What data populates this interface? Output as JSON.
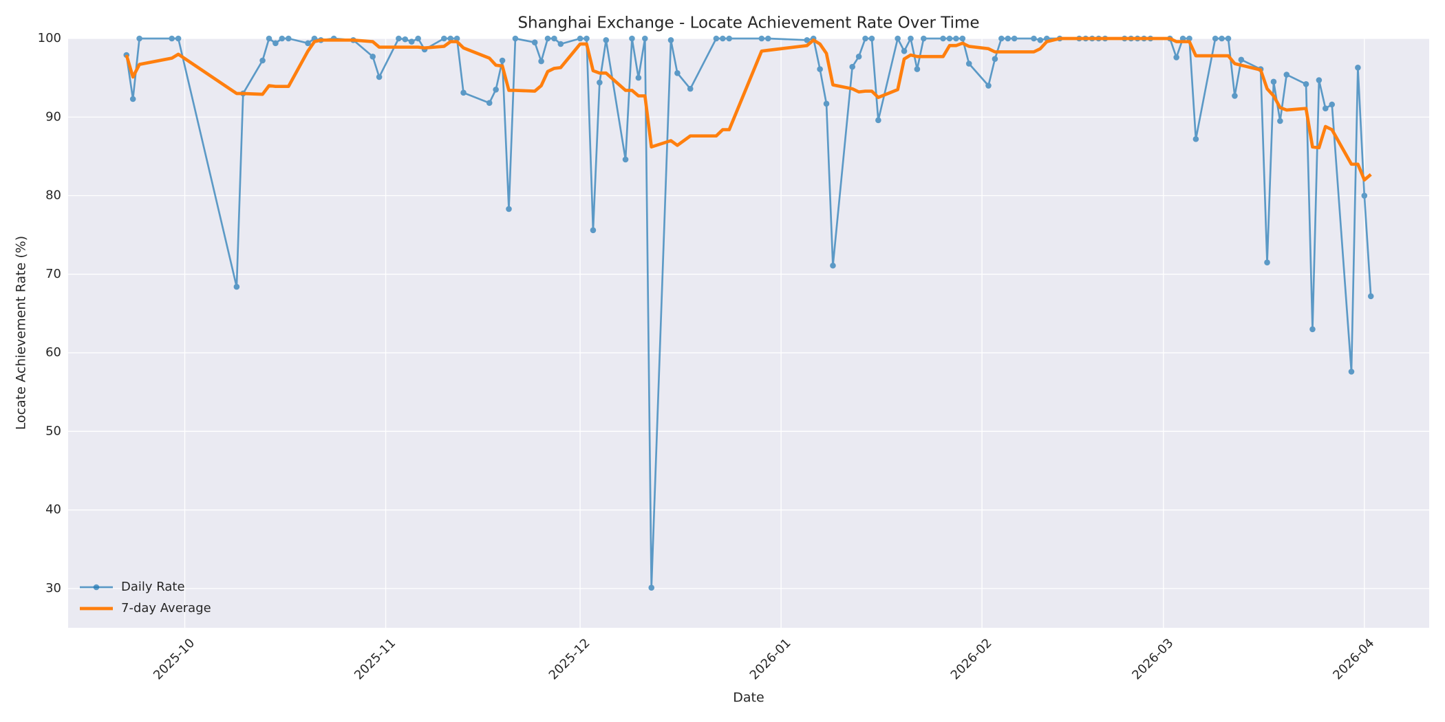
{
  "chart_data": {
    "type": "line",
    "title": "Shanghai Exchange - Locate Achievement Rate Over Time",
    "xlabel": "Date",
    "ylabel": "Locate Achievement Rate (%)",
    "x": [
      "2025-09-22",
      "2025-09-23",
      "2025-09-24",
      "2025-09-29",
      "2025-09-30",
      "2025-10-09",
      "2025-10-10",
      "2025-10-13",
      "2025-10-14",
      "2025-10-15",
      "2025-10-16",
      "2025-10-17",
      "2025-10-20",
      "2025-10-21",
      "2025-10-22",
      "2025-10-24",
      "2025-10-27",
      "2025-10-30",
      "2025-10-31",
      "2025-11-03",
      "2025-11-04",
      "2025-11-05",
      "2025-11-06",
      "2025-11-07",
      "2025-11-10",
      "2025-11-11",
      "2025-11-12",
      "2025-11-13",
      "2025-11-17",
      "2025-11-18",
      "2025-11-19",
      "2025-11-20",
      "2025-11-21",
      "2025-11-24",
      "2025-11-25",
      "2025-11-26",
      "2025-11-27",
      "2025-11-28",
      "2025-12-01",
      "2025-12-02",
      "2025-12-03",
      "2025-12-04",
      "2025-12-05",
      "2025-12-08",
      "2025-12-09",
      "2025-12-10",
      "2025-12-11",
      "2025-12-12",
      "2025-12-15",
      "2025-12-16",
      "2025-12-18",
      "2025-12-22",
      "2025-12-23",
      "2025-12-24",
      "2025-12-29",
      "2025-12-30",
      "2026-01-05",
      "2026-01-06",
      "2026-01-07",
      "2026-01-08",
      "2026-01-09",
      "2026-01-12",
      "2026-01-13",
      "2026-01-14",
      "2026-01-15",
      "2026-01-16",
      "2026-01-19",
      "2026-01-20",
      "2026-01-21",
      "2026-01-22",
      "2026-01-23",
      "2026-01-26",
      "2026-01-27",
      "2026-01-28",
      "2026-01-29",
      "2026-01-30",
      "2026-02-02",
      "2026-02-03",
      "2026-02-04",
      "2026-02-05",
      "2026-02-06",
      "2026-02-09",
      "2026-02-10",
      "2026-02-11",
      "2026-02-13",
      "2026-02-16",
      "2026-02-17",
      "2026-02-18",
      "2026-02-19",
      "2026-02-20",
      "2026-02-23",
      "2026-02-24",
      "2026-02-25",
      "2026-02-26",
      "2026-02-27",
      "2026-03-02",
      "2026-03-03",
      "2026-03-04",
      "2026-03-05",
      "2026-03-06",
      "2026-03-09",
      "2026-03-10",
      "2026-03-11",
      "2026-03-12",
      "2026-03-13",
      "2026-03-16",
      "2026-03-17",
      "2026-03-18",
      "2026-03-19",
      "2026-03-20",
      "2026-03-23",
      "2026-03-24",
      "2026-03-25",
      "2026-03-26",
      "2026-03-27",
      "2026-03-30",
      "2026-03-31",
      "2026-04-01",
      "2026-04-02"
    ],
    "series": [
      {
        "name": "Daily Rate",
        "color": "#1f77b4",
        "markers": true,
        "opacity": 0.7,
        "width": 2,
        "values": [
          97.9,
          92.3,
          100,
          100,
          100,
          68.4,
          93,
          97.2,
          100,
          99.4,
          100,
          100,
          99.4,
          100,
          99.8,
          100,
          99.8,
          97.7,
          95.1,
          100,
          99.9,
          99.6,
          100,
          98.6,
          100,
          100,
          100,
          93.1,
          91.8,
          93.5,
          97.2,
          78.3,
          100,
          99.5,
          97.1,
          100,
          100,
          99.3,
          100,
          100,
          75.6,
          94.4,
          99.8,
          84.6,
          100,
          95,
          100,
          30.1,
          99.8,
          95.6,
          93.6,
          100,
          100,
          100,
          100,
          100,
          99.8,
          100,
          96.1,
          91.7,
          71.1,
          96.4,
          97.7,
          100,
          100,
          89.6,
          100,
          98.4,
          100,
          96.1,
          100,
          100,
          100,
          100,
          100,
          96.8,
          94,
          97.4,
          100,
          100,
          100,
          100,
          99.8,
          100,
          100,
          100,
          100,
          100,
          100,
          100,
          100,
          100,
          100,
          100,
          100,
          100,
          97.6,
          100,
          100,
          87.2,
          100,
          100,
          100,
          92.7,
          97.3,
          96.1,
          71.5,
          94.5,
          89.5,
          95.4,
          94.2,
          63,
          94.7,
          91.1,
          91.6,
          57.6,
          96.3,
          80,
          67.2
        ]
      },
      {
        "name": "7-day Average",
        "color": "#ff7f0e",
        "markers": false,
        "opacity": 1,
        "width": 3.5,
        "values": [
          97.9,
          95.1,
          96.7,
          97.5,
          98,
          93,
          93,
          92.9,
          94,
          93.9,
          93.9,
          93.9,
          98.4,
          99.6,
          99.8,
          99.8,
          99.8,
          99.6,
          98.9,
          98.9,
          98.9,
          98.9,
          98.9,
          98.8,
          99,
          99.6,
          99.6,
          98.8,
          97.5,
          96.6,
          96.5,
          93.4,
          93.4,
          93.3,
          94,
          95.8,
          96.2,
          96.3,
          99.3,
          99.3,
          95.9,
          95.6,
          95.6,
          93.4,
          93.4,
          92.7,
          92.7,
          86.2,
          87,
          86.4,
          87.6,
          87.6,
          88.4,
          88.4,
          98.4,
          98.5,
          99.1,
          99.8,
          99.3,
          98.1,
          94.1,
          93.6,
          93.2,
          93.3,
          93.3,
          92.5,
          93.5,
          97.4,
          97.9,
          97.7,
          97.7,
          97.7,
          99.1,
          99.1,
          99.4,
          99,
          98.7,
          98.3,
          98.3,
          98.3,
          98.3,
          98.3,
          98.7,
          99.6,
          100,
          100,
          100,
          100,
          100,
          100,
          100,
          100,
          100,
          100,
          100,
          100,
          99.6,
          99.6,
          99.6,
          97.8,
          97.8,
          97.8,
          97.8,
          96.8,
          96.6,
          96,
          93.6,
          92.7,
          91.2,
          90.9,
          91.1,
          86.2,
          86.1,
          88.8,
          88.4,
          84,
          84,
          82,
          82.7
        ]
      }
    ],
    "xlim": [
      "2025-09-13",
      "2026-04-11"
    ],
    "xticks": [
      "2025-10",
      "2025-11",
      "2025-12",
      "2026-01",
      "2026-02",
      "2026-03",
      "2026-04"
    ],
    "ylim": [
      25,
      100
    ],
    "yticks": [
      30,
      40,
      50,
      60,
      70,
      80,
      90,
      100
    ],
    "grid": true,
    "legend": "lower left"
  }
}
